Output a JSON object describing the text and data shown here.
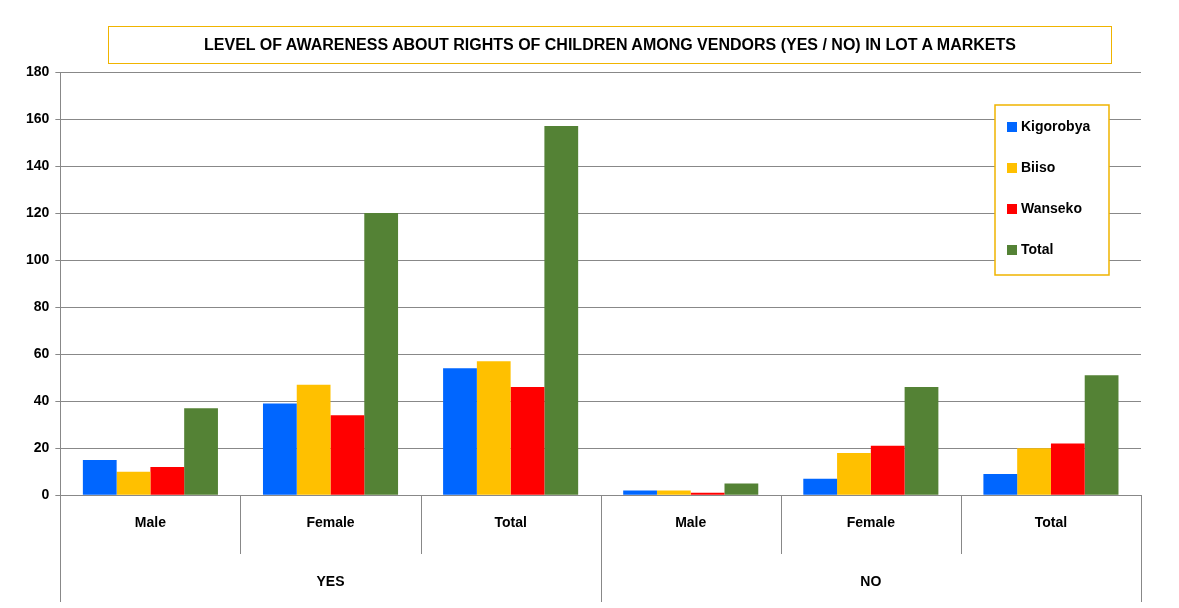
{
  "chart_data": {
    "type": "bar",
    "title": "LEVEL OF AWARENESS ABOUT RIGHTS OF CHILDREN AMONG VENDORS (YES / NO) IN LOT A MARKETS",
    "categories": [
      "Male",
      "Female",
      "Total",
      "Male",
      "Female",
      "Total"
    ],
    "series": [
      {
        "name": "Kigorobya",
        "color": "#0066ff",
        "values": [
          15,
          39,
          54,
          2,
          7,
          9
        ]
      },
      {
        "name": "Biiso",
        "color": "#ffc000",
        "values": [
          10,
          47,
          57,
          2,
          18,
          20
        ]
      },
      {
        "name": "Wanseko",
        "color": "#ff0000",
        "values": [
          12,
          34,
          46,
          1,
          21,
          22
        ]
      },
      {
        "name": "Total",
        "color": "#548235",
        "values": [
          37,
          120,
          157,
          5,
          46,
          51
        ]
      }
    ],
    "annotations": [
      "YES",
      "NO"
    ],
    "ylim": [
      0,
      180
    ],
    "yticks": [
      0,
      20,
      40,
      60,
      80,
      100,
      120,
      140,
      160,
      180
    ],
    "grid": "y",
    "legend": "top right"
  }
}
